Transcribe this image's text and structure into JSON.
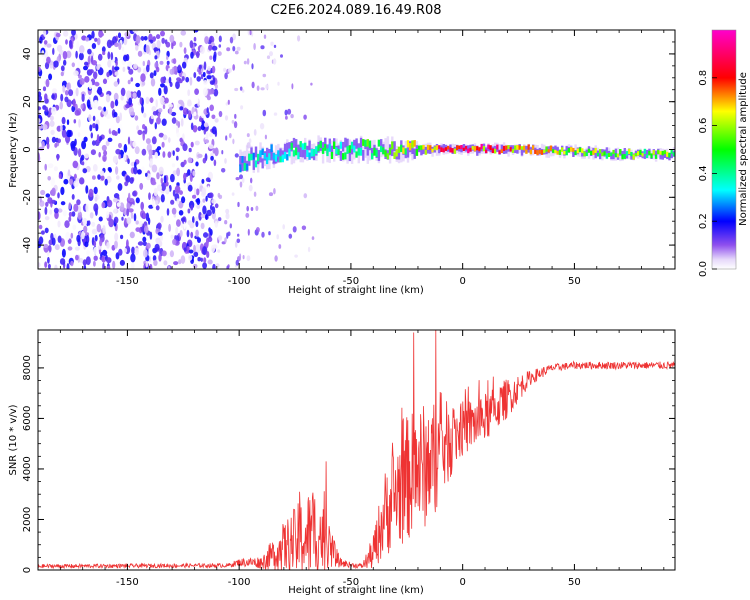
{
  "title": "C2E6.2024.089.16.49.R08",
  "chart_data": [
    {
      "type": "heatmap",
      "name": "spectrogram",
      "xlabel": "Height of straight line (km)",
      "ylabel": "Frequency (Hz)",
      "xlim": [
        -190,
        95
      ],
      "ylim": [
        -50,
        50
      ],
      "xticks": [
        -150,
        -100,
        -50,
        0,
        50
      ],
      "xtick_labels": [
        "-150",
        "-100",
        "-50",
        "0",
        "50"
      ],
      "yticks": [
        -40,
        -20,
        0,
        20,
        40
      ],
      "ytick_labels": [
        "-40",
        "-20",
        "0",
        "20",
        "40"
      ],
      "description_series": [
        {
          "name": "noise-region",
          "x_range": [
            -190,
            -110
          ],
          "max_amplitude": 0.2
        },
        {
          "name": "transition-region",
          "x_range": [
            -110,
            -85
          ],
          "max_amplitude": 0.35
        },
        {
          "name": "signal-line",
          "x": [
            -100,
            -75,
            -50,
            -25,
            0,
            25,
            50,
            75,
            95
          ],
          "y": [
            -5,
            0,
            0,
            0,
            0,
            0,
            -1,
            -2,
            -2
          ],
          "amplitude": [
            0.35,
            0.4,
            0.45,
            0.6,
            0.9,
            0.7,
            0.6,
            0.55,
            0.55
          ]
        }
      ],
      "colorbar": {
        "label": "Normalized spectral amplitude",
        "range": [
          0,
          1
        ],
        "ticks": [
          0.0,
          0.2,
          0.4,
          0.6,
          0.8
        ],
        "tick_labels": [
          "0.0",
          "0.2",
          "0.4",
          "0.6",
          "0.8"
        ]
      }
    },
    {
      "type": "line",
      "name": "snr",
      "xlabel": "Height of straight line (km)",
      "ylabel": "SNR (10 * v/v)",
      "xlim": [
        -190,
        95
      ],
      "ylim": [
        0,
        9500
      ],
      "xticks": [
        -150,
        -100,
        -50,
        0,
        50
      ],
      "xtick_labels": [
        "-150",
        "-100",
        "-50",
        "0",
        "50"
      ],
      "yticks": [
        0,
        2000,
        4000,
        6000,
        8000
      ],
      "ytick_labels": [
        "0",
        "2000",
        "4000",
        "6000",
        "8000"
      ],
      "color": "#ee3333",
      "envelope": {
        "x": [
          -190,
          -105,
          -100,
          -90,
          -80,
          -70,
          -65,
          -60,
          -55,
          -50,
          -45,
          -40,
          -35,
          -30,
          -25,
          -20,
          -15,
          -10,
          -5,
          0,
          10,
          20,
          30,
          40,
          50,
          60,
          70,
          80,
          95
        ],
        "base": [
          150,
          180,
          300,
          300,
          900,
          1300,
          1500,
          1000,
          300,
          200,
          150,
          700,
          2200,
          3000,
          3600,
          4000,
          4200,
          4700,
          5200,
          5600,
          6000,
          6800,
          7600,
          8000,
          8100,
          8100,
          8100,
          8100,
          8100
        ],
        "amp": [
          80,
          80,
          150,
          250,
          1000,
          1800,
          1900,
          900,
          200,
          100,
          100,
          700,
          1700,
          2200,
          2500,
          2500,
          2500,
          2000,
          1500,
          1100,
          1000,
          800,
          300,
          150,
          150,
          150,
          150,
          150,
          150
        ]
      },
      "peaks": [
        {
          "x": -73,
          "y": 3100
        },
        {
          "x": -61,
          "y": 4300
        },
        {
          "x": -22,
          "y": 9400
        },
        {
          "x": -12,
          "y": 9500
        }
      ]
    }
  ]
}
